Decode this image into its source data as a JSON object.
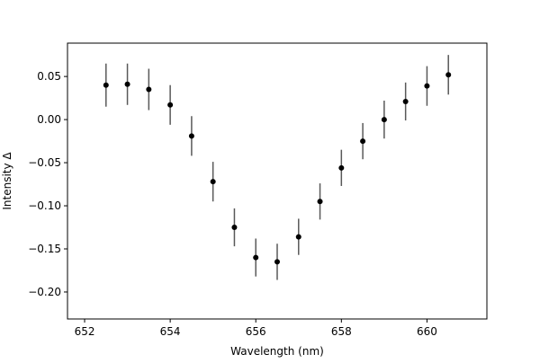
{
  "chart_data": {
    "type": "scatter",
    "title": "",
    "xlabel": "Wavelength (nm)",
    "ylabel": "Intensity Δ",
    "xlim": [
      651.6,
      661.4
    ],
    "ylim": [
      -0.2313,
      0.0887
    ],
    "x_ticks": [
      652,
      654,
      656,
      658,
      660
    ],
    "x_tick_labels": [
      "652",
      "654",
      "656",
      "658",
      "660"
    ],
    "y_ticks": [
      0.05,
      0.0,
      -0.05,
      -0.1,
      -0.15,
      -0.2
    ],
    "y_tick_labels": [
      "0.05",
      "0.00",
      "−0.05",
      "−0.10",
      "−0.15",
      "−0.20"
    ],
    "grid": false,
    "legend": "none",
    "colors": {
      "marker": "#000000",
      "errorbar": "#595959",
      "axes": "#000000"
    },
    "series": [
      {
        "x": [
          652.5,
          653.0,
          653.5,
          654.0,
          654.5,
          655.0,
          655.5,
          656.0,
          656.5,
          657.0,
          657.5,
          658.0,
          658.5,
          659.0,
          659.5,
          660.0,
          660.5
        ],
        "values": [
          0.04,
          0.041,
          0.035,
          0.017,
          -0.019,
          -0.072,
          -0.125,
          -0.16,
          -0.165,
          -0.136,
          -0.095,
          -0.056,
          -0.025,
          0.0,
          0.021,
          0.039,
          0.052
        ],
        "errors": [
          0.025,
          0.024,
          0.024,
          0.023,
          0.023,
          0.023,
          0.022,
          0.022,
          0.021,
          0.021,
          0.021,
          0.021,
          0.021,
          0.022,
          0.022,
          0.023,
          0.023
        ]
      }
    ]
  }
}
